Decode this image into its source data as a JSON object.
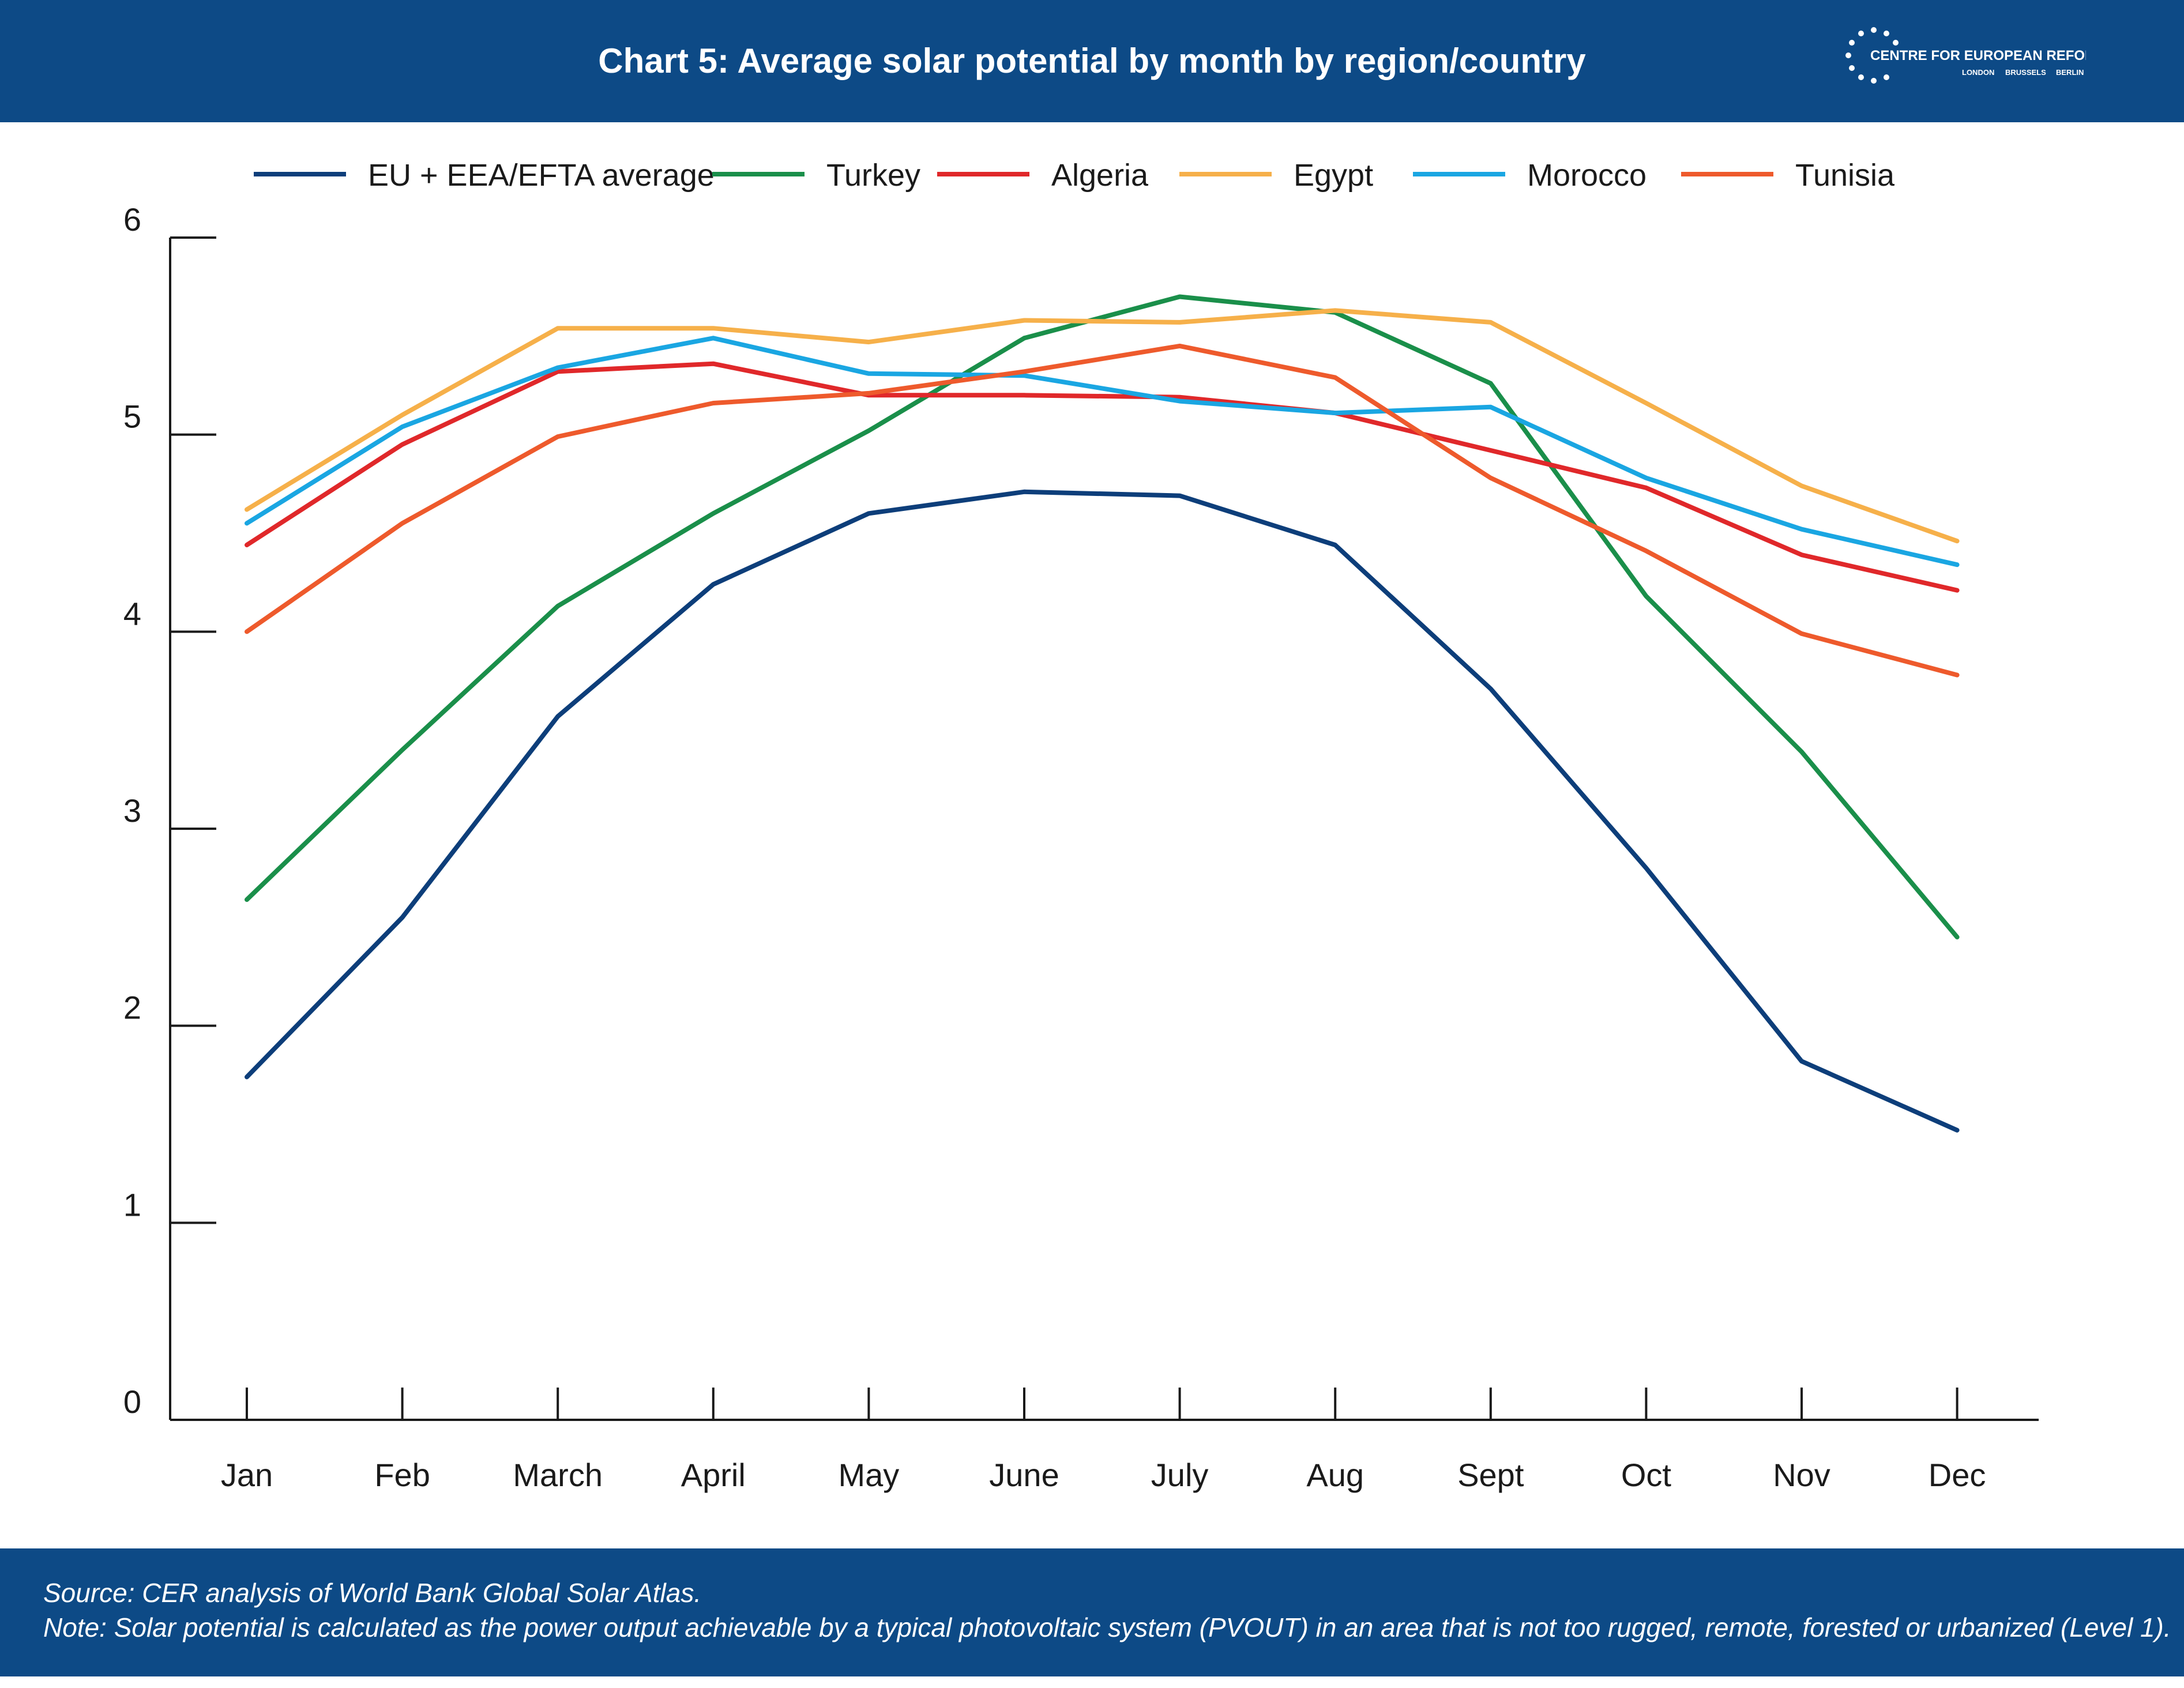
{
  "header": {
    "title": "Chart 5: Average solar potential by month by region/country",
    "logo_name": "CENTRE FOR EUROPEAN REFORM",
    "logo_cities": [
      "LONDON",
      "BRUSSELS",
      "BERLIN"
    ],
    "background": "#0d4a86"
  },
  "footer": {
    "source": "Source: CER analysis of World Bank Global Solar Atlas.",
    "note": "Note: Solar potential is calculated as the power output achievable by a typical photovoltaic system (PVOUT) in an area that is not too rugged, remote, forested or urbanized (Level 1)."
  },
  "chart_data": {
    "type": "line",
    "title": "Chart 5: Average solar potential by month by region/country",
    "xlabel": "",
    "ylabel": "",
    "categories": [
      "Jan",
      "Feb",
      "March",
      "April",
      "May",
      "June",
      "July",
      "Aug",
      "Sept",
      "Oct",
      "Nov",
      "Dec"
    ],
    "ylim": [
      0,
      6
    ],
    "yticks": [
      "0",
      "1",
      "2",
      "3",
      "4",
      "5",
      "6"
    ],
    "grid": false,
    "legend_position": "top",
    "series": [
      {
        "name": "EU + EEA/EFTA average",
        "color": "#0d3e7a",
        "values": [
          1.74,
          2.55,
          3.57,
          4.24,
          4.6,
          4.71,
          4.69,
          4.44,
          3.71,
          2.8,
          1.82,
          1.47
        ]
      },
      {
        "name": "Turkey",
        "color": "#1a8f4a",
        "values": [
          2.64,
          3.4,
          4.13,
          4.6,
          5.02,
          5.49,
          5.7,
          5.62,
          5.26,
          4.18,
          3.39,
          2.45
        ]
      },
      {
        "name": "Algeria",
        "color": "#e0282a",
        "values": [
          4.44,
          4.95,
          5.32,
          5.36,
          5.2,
          5.2,
          5.19,
          5.11,
          4.92,
          4.73,
          4.39,
          4.21
        ]
      },
      {
        "name": "Egypt",
        "color": "#f6b04a",
        "values": [
          4.62,
          5.1,
          5.54,
          5.54,
          5.47,
          5.58,
          5.57,
          5.63,
          5.57,
          5.16,
          4.74,
          4.46
        ]
      },
      {
        "name": "Morocco",
        "color": "#1aa6e2",
        "values": [
          4.55,
          5.04,
          5.34,
          5.49,
          5.31,
          5.3,
          5.17,
          5.11,
          5.14,
          4.78,
          4.52,
          4.34
        ]
      },
      {
        "name": "Tunisia",
        "color": "#ee5a2c",
        "values": [
          4.0,
          4.55,
          4.99,
          5.16,
          5.21,
          5.32,
          5.45,
          5.29,
          4.78,
          4.41,
          3.99,
          3.78
        ]
      }
    ]
  }
}
